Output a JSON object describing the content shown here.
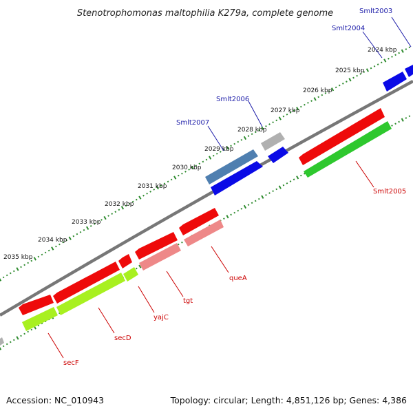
{
  "title": "Stenotrophomonas maltophilia K279a, complete genome",
  "footer": {
    "accession": "Accession: NC_010943",
    "summary": "Topology: circular; Length: 4,851,126 bp; Genes: 4,386"
  },
  "colors": {
    "backbone": "#777777",
    "tick": "#2e8b2e",
    "blue": "#0a0ae6",
    "steelblue": "#4f7fb0",
    "gray": "#b0b0b0",
    "red": "#ee0a0a",
    "pink": "#ee8888",
    "lime": "#a8f020",
    "green": "#2ec82e"
  },
  "kbp_labels": [
    "2024 kbp",
    "2025 kbp",
    "2026 kbp",
    "2027 kbp",
    "2028 kbp",
    "2029 kbp",
    "2030 kbp",
    "2031 kbp",
    "2032 kbp",
    "2033 kbp",
    "2034 kbp",
    "2035 kbp"
  ],
  "gene_labels": {
    "smlt2003": "Smlt2003",
    "smlt2004": "Smlt2004",
    "smlt2006": "Smlt2006",
    "smlt2007": "Smlt2007",
    "smlt2005": "Smlt2005",
    "queA": "queA",
    "tgt": "tgt",
    "yajC": "yajC",
    "secD": "secD",
    "secF": "secF"
  }
}
